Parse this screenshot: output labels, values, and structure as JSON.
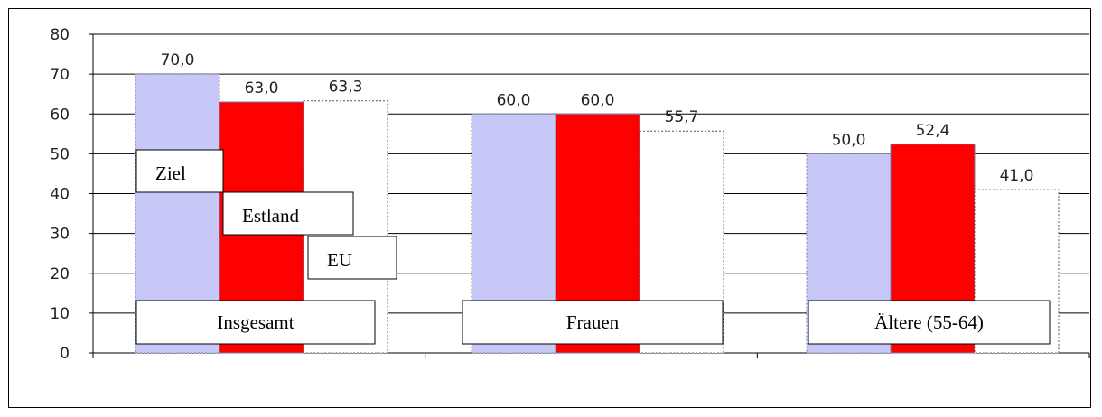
{
  "chart_data": {
    "type": "bar",
    "categories": [
      "Insgesamt",
      "Frauen",
      "Ältere (55-64)"
    ],
    "series": [
      {
        "name": "Ziel",
        "values": [
          70.0,
          60.0,
          50.0
        ],
        "value_labels": [
          "70,0",
          "60,0",
          "50,0"
        ],
        "color": "#c8c8f8"
      },
      {
        "name": "Estland",
        "values": [
          63.0,
          60.0,
          52.4
        ],
        "value_labels": [
          "63,0",
          "60,0",
          "52,4"
        ],
        "color": "#ff0000"
      },
      {
        "name": "EU",
        "values": [
          63.3,
          55.7,
          41.0
        ],
        "value_labels": [
          "63,3",
          "55,7",
          "41,0"
        ],
        "color": "#ffffff"
      }
    ],
    "yticks": [
      "0",
      "10",
      "20",
      "30",
      "40",
      "50",
      "60",
      "70",
      "80"
    ],
    "ylim": [
      0,
      80
    ],
    "grid": true,
    "title": "",
    "xlabel": "",
    "ylabel": ""
  }
}
